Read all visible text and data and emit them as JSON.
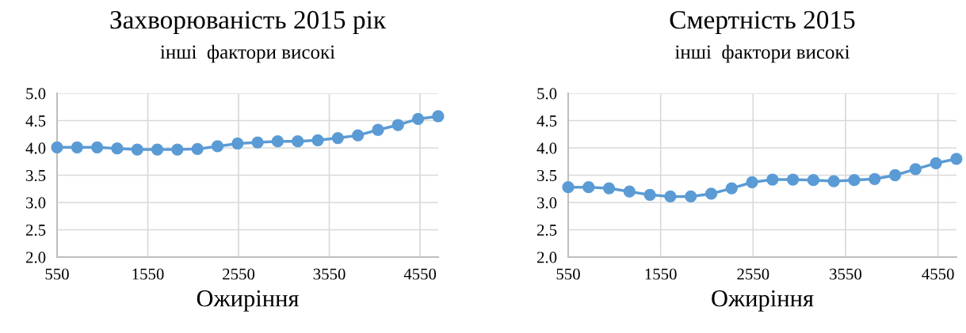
{
  "chart_data": [
    {
      "type": "line",
      "title": "Захворюваність 2015 рік",
      "subtitle": "інші  фактори високі",
      "xlabel": "Ожиріння",
      "x": [
        550,
        771,
        992,
        1213,
        1434,
        1655,
        1876,
        2097,
        2318,
        2539,
        2760,
        2981,
        3202,
        3423,
        3644,
        3865,
        4086,
        4307,
        4528,
        4749
      ],
      "series": [
        {
          "color": "#5b9bd5",
          "values": [
            4.01,
            4.01,
            4.01,
            3.99,
            3.97,
            3.97,
            3.97,
            3.98,
            4.03,
            4.08,
            4.1,
            4.12,
            4.12,
            4.14,
            4.18,
            4.23,
            4.33,
            4.42,
            4.53,
            4.58
          ]
        }
      ],
      "xlim": [
        550,
        4750
      ],
      "xticks": [
        550,
        1550,
        2550,
        3550,
        4550
      ],
      "ylim": [
        2.0,
        5.0
      ],
      "yticks": [
        {
          "value": 2.0,
          "label": "2.0"
        },
        {
          "value": 2.5,
          "label": "2.5"
        },
        {
          "value": 3.0,
          "label": "3.0"
        },
        {
          "value": 3.5,
          "label": "3.5"
        },
        {
          "value": 4.0,
          "label": "4.0"
        },
        {
          "value": 4.5,
          "label": "4.5"
        },
        {
          "value": 5.0,
          "label": "5.0"
        }
      ],
      "grid": true,
      "marker": "circle",
      "line_style": "solid",
      "legend": false
    },
    {
      "type": "line",
      "title": "Смертність 2015",
      "subtitle": "інші  фактори високі",
      "xlabel": "Ожиріння",
      "x": [
        550,
        771,
        992,
        1213,
        1434,
        1655,
        1876,
        2097,
        2318,
        2539,
        2760,
        2981,
        3202,
        3423,
        3644,
        3865,
        4086,
        4307,
        4528,
        4749
      ],
      "series": [
        {
          "color": "#5b9bd5",
          "values": [
            3.28,
            3.28,
            3.26,
            3.2,
            3.14,
            3.11,
            3.11,
            3.16,
            3.26,
            3.37,
            3.42,
            3.42,
            3.41,
            3.39,
            3.41,
            3.43,
            3.5,
            3.61,
            3.72,
            3.8
          ]
        }
      ],
      "xlim": [
        550,
        4750
      ],
      "xticks": [
        550,
        1550,
        2550,
        3550,
        4550
      ],
      "ylim": [
        2.0,
        5.0
      ],
      "yticks": [
        {
          "value": 2.0,
          "label": "2.0"
        },
        {
          "value": 2.5,
          "label": "2.5"
        },
        {
          "value": 3.0,
          "label": "3.0"
        },
        {
          "value": 3.5,
          "label": "3.5"
        },
        {
          "value": 4.0,
          "label": "4.0"
        },
        {
          "value": 4.5,
          "label": "4.5"
        },
        {
          "value": 5.0,
          "label": "5.0"
        }
      ],
      "grid": true,
      "marker": "circle",
      "line_style": "solid",
      "legend": false
    }
  ]
}
